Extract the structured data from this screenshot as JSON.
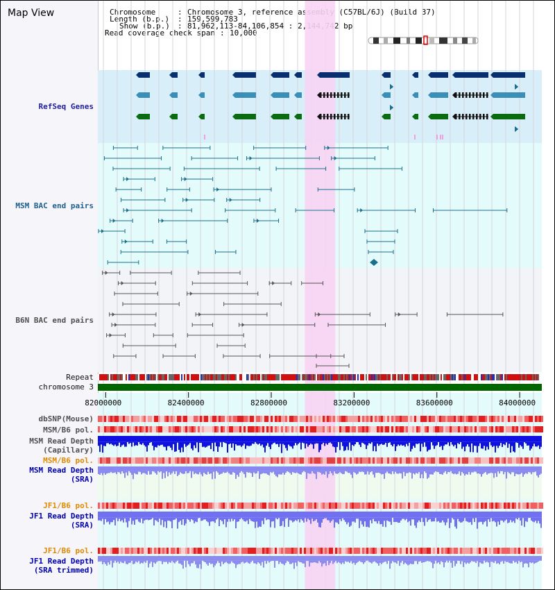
{
  "view": {
    "title": "Map View"
  },
  "header": {
    "chromosome_key": "Chromosome",
    "chromosome_val": "Chromosome 3, reference assembly (C57BL/6J) (Build 37)",
    "length_key": "Length (b.p.)",
    "length_val": "159,599,783",
    "show_key": "Show (b.p.)",
    "show_val": "81,962,113-84,106,854 : 2,144,742 bp",
    "span_key": "Read coverage check span",
    "span_val": "10,000"
  },
  "tracks": {
    "refseq": "RefSeq Genes",
    "msm_bac": "MSM BAC end pairs",
    "b6n_bac": "B6N BAC end pairs",
    "repeat": "Repeat",
    "chromosome": "chromosome 3",
    "dbsnp": "dbSNP(Mouse)",
    "msm_pol1": "MSM/B6 pol.",
    "msm_depth1_a": "MSM Read Depth",
    "msm_depth1_b": "(Capillary)",
    "msm_pol2": "MSM/B6 pol.",
    "msm_depth2_a": "MSM Read Depth",
    "msm_depth2_b": "(SRA)",
    "jf1_pol1": "JF1/B6 pol.",
    "jf1_depth1_a": "JF1 Read Depth",
    "jf1_depth1_b": "(SRA)",
    "jf1_pol2": "JF1/B6 pol.",
    "jf1_depth2_a": "JF1 Read Depth",
    "jf1_depth2_b": "(SRA trimmed)"
  },
  "axis": {
    "ticks": [
      "82000000",
      "82400000",
      "82800000",
      "83200000",
      "83600000",
      "84000000"
    ],
    "tick_values": [
      82000000,
      82400000,
      82800000,
      83200000,
      83600000,
      84000000
    ],
    "range": [
      81962113,
      84106854
    ]
  },
  "highlight_range": [
    82962113,
    83109000
  ],
  "colors": {
    "refseq_bg": "#d8eef8",
    "bac_bg": "#e4fbfb",
    "b6n_bg": "#f2f4f7",
    "highlight": "#f7d4f3",
    "chromosome": "#006600",
    "repeat_red": "#d01010",
    "depth_dark": "#1010e0",
    "depth_light": "#7878f0",
    "snp": "#f08080"
  }
}
